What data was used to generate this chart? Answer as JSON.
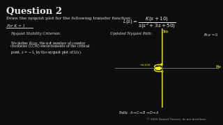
{
  "title": "Question 2",
  "subtitle": "Draw the nyquist plot for the following transfer function:",
  "for_k": "For K = 1",
  "criterion_title": "Nyquist Stability Criterion:",
  "criterion_line1": "We define $N_{CCW}$, the net number of counter",
  "criterion_line2": "clockwise (CCW) encirclements of the critical",
  "criterion_line3": "point, $s = -1$, by the nyquist plot of L(s).",
  "updated_path_label": "Updated Nyquist Path:",
  "p_rhp_label": "$P_{RHP} = 0$",
  "path_label": "Path:  $A \\rightarrow C \\rightarrow B \\rightarrow D \\rightarrow A$",
  "copyright": "© 2020 Samuel Taeuver, do not distribute.",
  "bg_color": "#0d0d0d",
  "plot_color": "#ffff00",
  "text_color": "#e8e8e8",
  "axis_color": "#999999",
  "dim_text": "#aaaaaa"
}
